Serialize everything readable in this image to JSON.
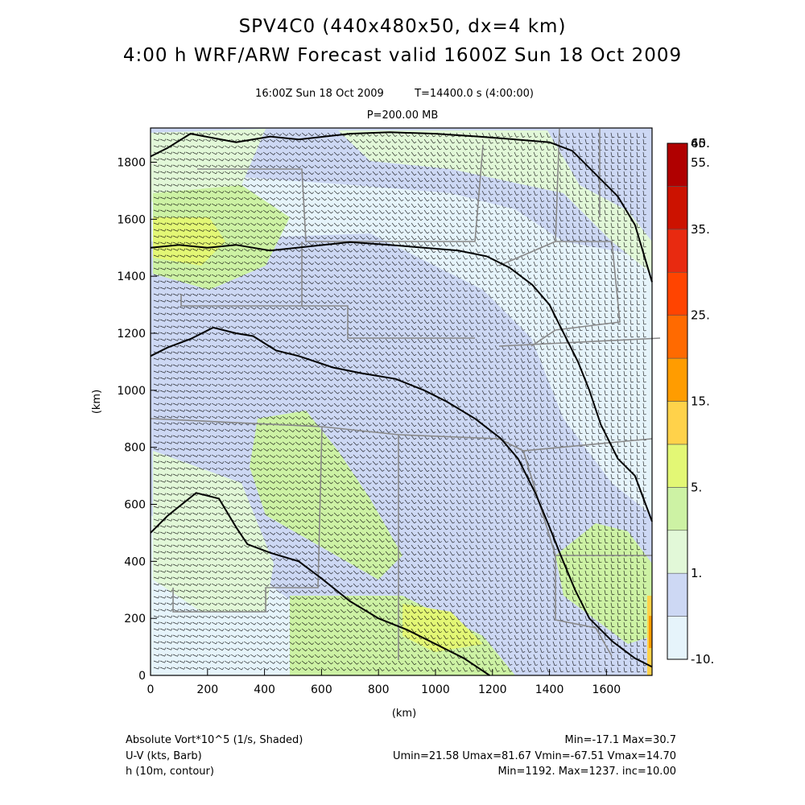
{
  "header": {
    "title": "SPV4C0 (440x480x50, dx=4 km)",
    "subtitle": "4:00 h WRF/ARW Forecast valid 1600Z Sun 18 Oct 2009",
    "valid_time": "16:00Z Sun 18 Oct 2009",
    "time_step": "T=14400.0 s (4:00:00)",
    "level": "P=200.00 MB"
  },
  "footer": {
    "field1_label": "Absolute Vort*10^5 (1/s, Shaded)",
    "field1_stats": "Min=-17.1 Max=30.7",
    "field2_label": "U-V (kts, Barb)",
    "field2_stats": "Umin=21.58 Umax=81.67 Vmin=-67.51 Vmax=14.70",
    "field3_label": "h (10m, contour)",
    "field3_stats": "Min=1192. Max=1237. inc=10.00"
  },
  "colors": {
    "shade_lowest": "#e6f4fb",
    "shade_low": "#cdd8f4",
    "shade_mid": "#e2f8d8",
    "shade_green": "#cdf2a4",
    "shade_yellowgreen": "#e3f775",
    "contour": "#000000",
    "state_lines": "#888888",
    "barbs": "#000000"
  },
  "chart_data": {
    "type": "heatmap",
    "xlabel": "(km)",
    "ylabel": "(km)",
    "xlim": [
      0,
      1760
    ],
    "ylim": [
      0,
      1920
    ],
    "x_ticks": [
      0,
      200,
      400,
      600,
      800,
      1000,
      1200,
      1400,
      1600
    ],
    "y_ticks": [
      0,
      200,
      400,
      600,
      800,
      1000,
      1200,
      1400,
      1600,
      1800
    ],
    "colorbar": {
      "labels": [
        "-10.",
        "1.",
        "5.",
        "15.",
        "25.",
        "35.",
        "45.",
        "55.",
        "60."
      ],
      "bins": [
        "#e6f4fb",
        "#cdd8f4",
        "#e2f8d8",
        "#cdf2a4",
        "#e3f775",
        "#ffd24a",
        "#ff9c00",
        "#ff6a00",
        "#ff4400",
        "#e82a10",
        "#cc1200",
        "#b00000"
      ]
    },
    "contours": [
      {
        "points": [
          [
            0,
            1820
          ],
          [
            60,
            1850
          ],
          [
            140,
            1900
          ],
          [
            300,
            1870
          ],
          [
            420,
            1890
          ],
          [
            520,
            1880
          ],
          [
            700,
            1900
          ],
          [
            840,
            1905
          ],
          [
            1000,
            1900
          ],
          [
            1150,
            1890
          ],
          [
            1280,
            1880
          ],
          [
            1400,
            1870
          ],
          [
            1480,
            1840
          ],
          [
            1560,
            1760
          ],
          [
            1640,
            1680
          ],
          [
            1700,
            1580
          ],
          [
            1760,
            1380
          ]
        ]
      },
      {
        "points": [
          [
            0,
            1500
          ],
          [
            100,
            1510
          ],
          [
            200,
            1500
          ],
          [
            300,
            1510
          ],
          [
            420,
            1490
          ],
          [
            560,
            1505
          ],
          [
            700,
            1520
          ],
          [
            840,
            1510
          ],
          [
            960,
            1500
          ],
          [
            1080,
            1490
          ],
          [
            1180,
            1470
          ],
          [
            1260,
            1430
          ],
          [
            1340,
            1370
          ],
          [
            1400,
            1300
          ],
          [
            1440,
            1220
          ],
          [
            1500,
            1100
          ],
          [
            1540,
            1000
          ],
          [
            1580,
            880
          ],
          [
            1640,
            760
          ],
          [
            1700,
            700
          ],
          [
            1760,
            540
          ]
        ]
      },
      {
        "points": [
          [
            0,
            1120
          ],
          [
            60,
            1150
          ],
          [
            140,
            1180
          ],
          [
            220,
            1220
          ],
          [
            300,
            1200
          ],
          [
            360,
            1190
          ],
          [
            440,
            1140
          ],
          [
            520,
            1120
          ],
          [
            640,
            1080
          ],
          [
            740,
            1060
          ],
          [
            860,
            1040
          ],
          [
            960,
            1000
          ],
          [
            1040,
            960
          ],
          [
            1140,
            900
          ],
          [
            1230,
            830
          ],
          [
            1290,
            760
          ],
          [
            1350,
            640
          ],
          [
            1400,
            520
          ],
          [
            1440,
            420
          ],
          [
            1490,
            300
          ],
          [
            1540,
            200
          ],
          [
            1620,
            120
          ],
          [
            1700,
            60
          ],
          [
            1760,
            30
          ]
        ]
      },
      {
        "points": [
          [
            0,
            500
          ],
          [
            60,
            560
          ],
          [
            160,
            640
          ],
          [
            240,
            620
          ],
          [
            300,
            520
          ],
          [
            340,
            460
          ],
          [
            420,
            430
          ],
          [
            520,
            400
          ],
          [
            600,
            340
          ],
          [
            700,
            260
          ],
          [
            800,
            200
          ],
          [
            900,
            160
          ],
          [
            1000,
            110
          ],
          [
            1100,
            60
          ],
          [
            1160,
            20
          ],
          [
            1190,
            0
          ]
        ]
      }
    ]
  }
}
